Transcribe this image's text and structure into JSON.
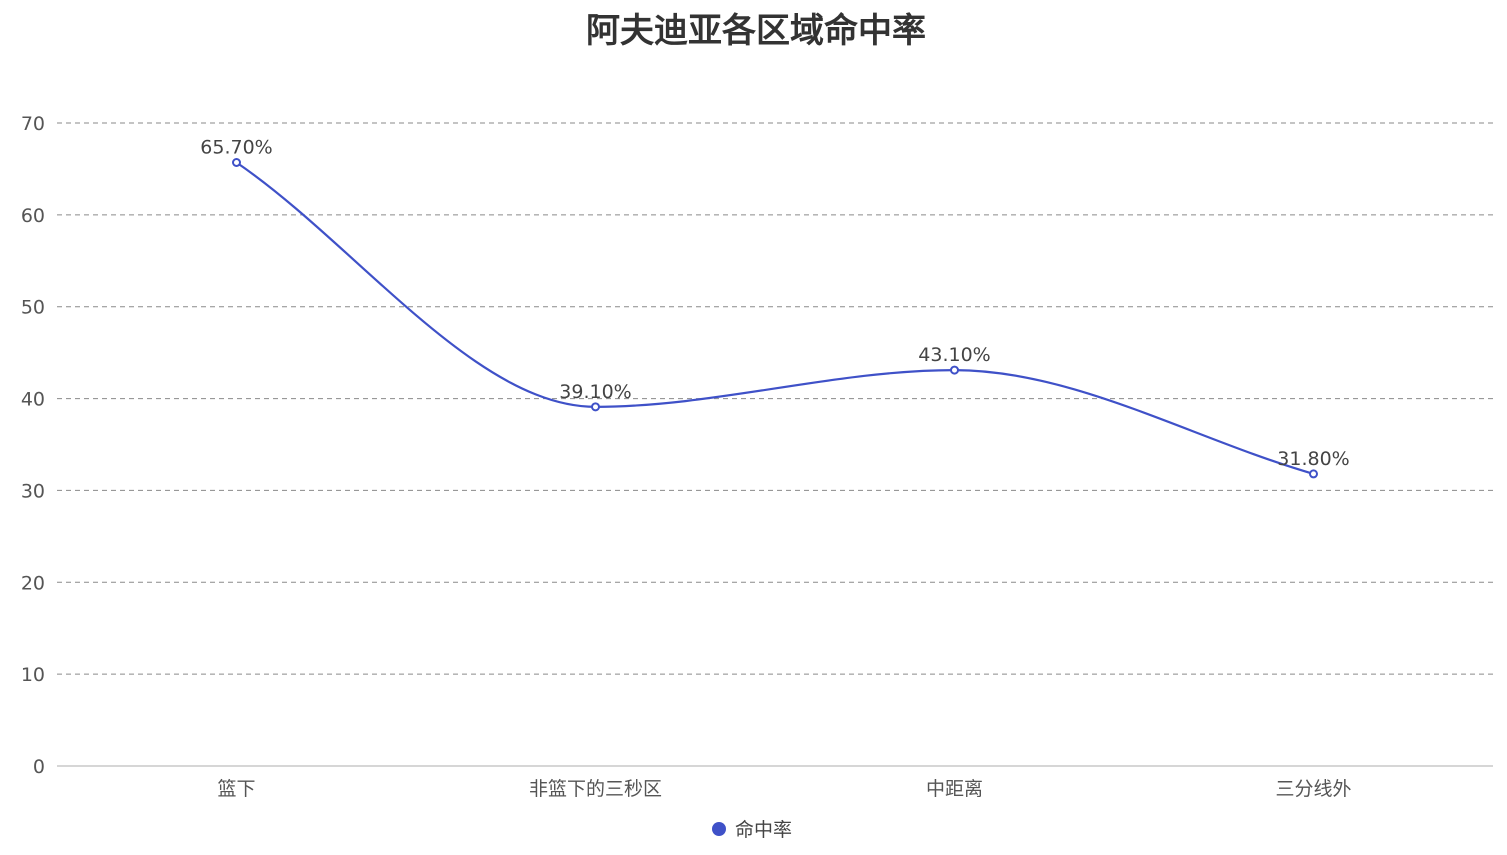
{
  "chart_data": {
    "type": "line",
    "title": "阿夫迪亚各区域命中率",
    "categories": [
      "篮下",
      "非篮下的三秒区",
      "中距离",
      "三分线外"
    ],
    "series": [
      {
        "name": "命中率",
        "values": [
          65.7,
          39.1,
          43.1,
          31.8
        ],
        "labels": [
          "65.70%",
          "39.10%",
          "43.10%",
          "31.80%"
        ],
        "color": "#3f51c8"
      }
    ],
    "ylim": [
      0,
      70
    ],
    "yticks": [
      0,
      10,
      20,
      30,
      40,
      50,
      60,
      70
    ],
    "grid": true,
    "smooth": true,
    "legend_position": "bottom-center"
  }
}
